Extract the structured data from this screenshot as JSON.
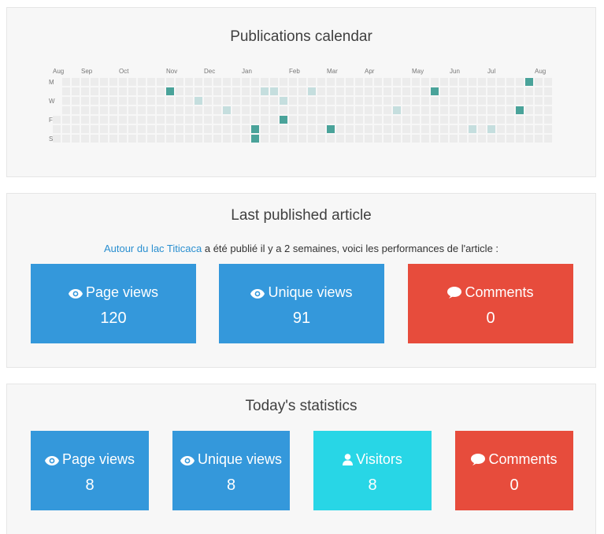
{
  "calendar": {
    "title": "Publications calendar",
    "months": [
      "Aug",
      "Sep",
      "Oct",
      "Nov",
      "Dec",
      "Jan",
      "Feb",
      "Mar",
      "Apr",
      "May",
      "Jun",
      "Jul",
      "Aug"
    ],
    "days": [
      "M",
      "W",
      "F",
      "S"
    ]
  },
  "last_article": {
    "title": "Last published article",
    "article_link": "Autour du lac Titicaca",
    "intro_text": " a été publié il y a 2 semaines, voici les performances de l'article :",
    "cards": [
      {
        "icon": "eye-icon",
        "label": "Page views",
        "value": "120",
        "color": "#3498db"
      },
      {
        "icon": "eye-icon",
        "label": "Unique views",
        "value": "91",
        "color": "#3498db"
      },
      {
        "icon": "comment-icon",
        "label": "Comments",
        "value": "0",
        "color": "#e74c3c"
      }
    ]
  },
  "today": {
    "title": "Today's statistics",
    "cards": [
      {
        "icon": "eye-icon",
        "label": "Page views",
        "value": "8",
        "color": "#3498db"
      },
      {
        "icon": "eye-icon",
        "label": "Unique views",
        "value": "8",
        "color": "#3498db"
      },
      {
        "icon": "user-icon",
        "label": "Visitors",
        "value": "8",
        "color": "#28d6e6"
      },
      {
        "icon": "comment-icon",
        "label": "Comments",
        "value": "0",
        "color": "#e74c3c"
      }
    ]
  }
}
